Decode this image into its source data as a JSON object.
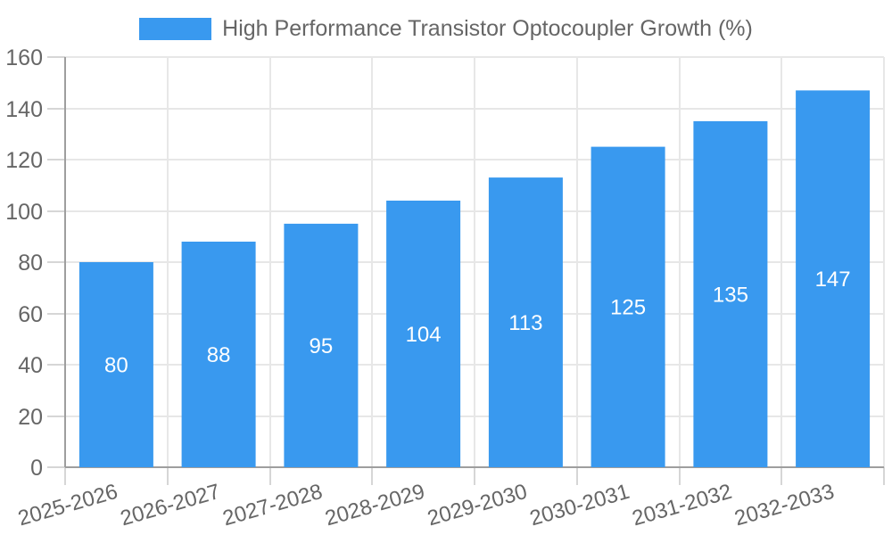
{
  "legend": {
    "label": "High Performance Transistor Optocoupler Growth (%)"
  },
  "chart_data": {
    "type": "bar",
    "title": "",
    "series": [
      {
        "name": "High Performance Transistor Optocoupler Growth (%)",
        "values": [
          80,
          88,
          95,
          104,
          113,
          125,
          135,
          147
        ]
      }
    ],
    "categories": [
      "2025-2026",
      "2026-2027",
      "2027-2028",
      "2028-2029",
      "2029-2030",
      "2030-2031",
      "2031-2032",
      "2032-2033"
    ],
    "value_labels": [
      "80",
      "88",
      "95",
      "104",
      "113",
      "125",
      "135",
      "147"
    ],
    "xlabel": "",
    "ylabel": "",
    "ylim": [
      0,
      160
    ],
    "yticks": [
      0,
      20,
      40,
      60,
      80,
      100,
      120,
      140,
      160
    ],
    "ytick_labels": [
      "0",
      "20",
      "40",
      "60",
      "80",
      "100",
      "120",
      "140",
      "160"
    ],
    "grid": true,
    "legend_position": "top",
    "value_label_position": "inside-center",
    "colors": {
      "bar": "#3999EF",
      "value_label": "#FFFFFF",
      "axis_text": "#666666",
      "grid_line": "#E7E7E7",
      "tick_mark": "#D6D6D6",
      "axis_line": "#9E9E9E",
      "background": "#FFFFFF"
    }
  }
}
